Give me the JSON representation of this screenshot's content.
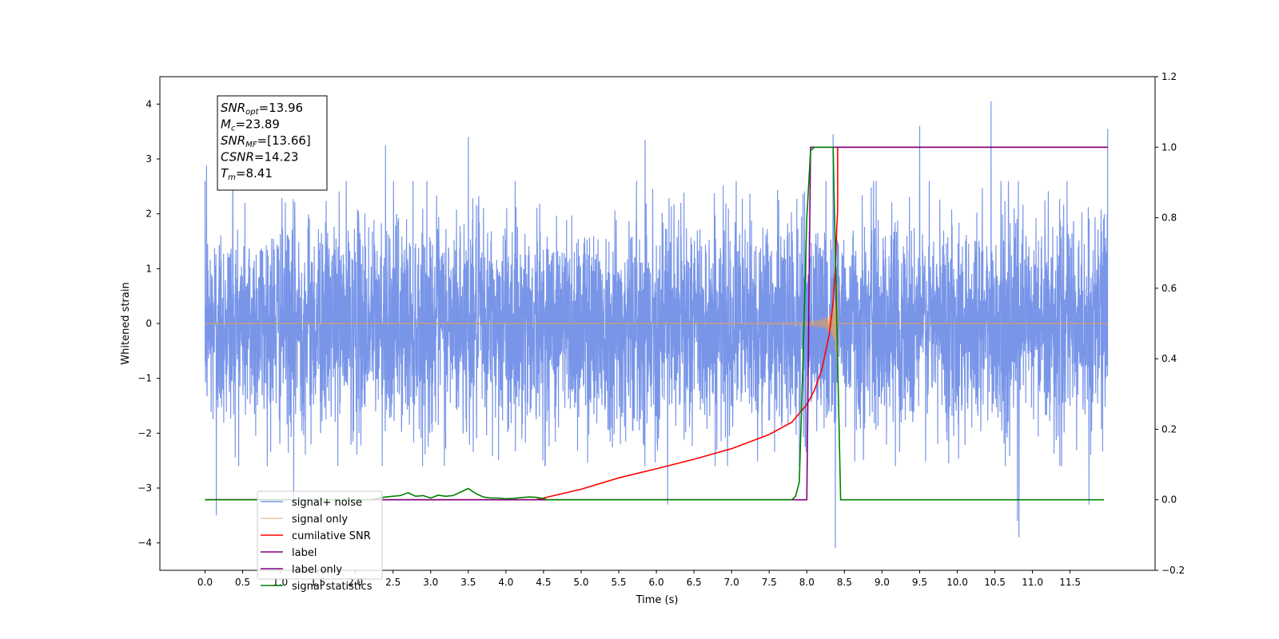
{
  "chart_data": {
    "type": "line",
    "xlabel": "Time (s)",
    "ylabel": "Whitened strain",
    "xlim": [
      -0.6,
      12.63
    ],
    "ylim": [
      -4.5,
      4.5
    ],
    "y2lim": [
      -0.2,
      1.2
    ],
    "x_ticks": [
      0.0,
      0.5,
      1.0,
      1.5,
      2.0,
      2.5,
      3.0,
      3.5,
      4.0,
      4.5,
      5.0,
      5.5,
      6.0,
      6.5,
      7.0,
      7.5,
      8.0,
      8.5,
      9.0,
      9.5,
      10.0,
      10.5,
      11.0,
      11.5
    ],
    "x_tick_labels": [
      "0.0",
      "0.5",
      "1.0",
      "1.5",
      "2.0",
      "2.5",
      "3.0",
      "3.5",
      "4.0",
      "4.5",
      "5.0",
      "5.5",
      "6.0",
      "6.5",
      "7.0",
      "7.5",
      "8.0",
      "8.5",
      "9.0",
      "9.5",
      "10.0",
      "10.5",
      "11.0",
      "11.5"
    ],
    "y_ticks": [
      -4,
      -3,
      -2,
      -1,
      0,
      1,
      2,
      3,
      4
    ],
    "y_tick_labels": [
      "−4",
      "−3",
      "−2",
      "−1",
      "0",
      "1",
      "2",
      "3",
      "4"
    ],
    "y2_ticks": [
      -0.2,
      0.0,
      0.2,
      0.4,
      0.6,
      0.8,
      1.0,
      1.2
    ],
    "y2_tick_labels": [
      "−0.2",
      "0.0",
      "0.2",
      "0.4",
      "0.6",
      "0.8",
      "1.0",
      "1.2"
    ],
    "legend_position": "lower-left",
    "annotation": {
      "lines": [
        {
          "sym": "SNR",
          "sub": "opt",
          "val": "=13.96"
        },
        {
          "sym": "M",
          "sub": "c",
          "val": "=23.89"
        },
        {
          "sym": "SNR",
          "sub": "MF",
          "val": "=[13.66]"
        },
        {
          "sym": "CSNR",
          "sub": "",
          "val": "=14.23"
        },
        {
          "sym": "T",
          "sub": "m",
          "val": "=8.41"
        }
      ]
    },
    "series": [
      {
        "name": "signal+ noise",
        "axis": "left",
        "color": "#7895e8",
        "kind": "noise",
        "x_range": [
          0.0,
          12.0
        ],
        "std": 0.95,
        "peaks": [
          [
            0.02,
            2.88
          ],
          [
            0.15,
            -3.5
          ],
          [
            0.37,
            3.1
          ],
          [
            1.18,
            -3.35
          ],
          [
            2.4,
            3.25
          ],
          [
            3.5,
            3.4
          ],
          [
            5.85,
            3.35
          ],
          [
            6.15,
            -3.3
          ],
          [
            8.35,
            3.45
          ],
          [
            8.38,
            -4.1
          ],
          [
            9.5,
            3.6
          ],
          [
            10.45,
            4.05
          ],
          [
            10.8,
            -3.6
          ],
          [
            10.82,
            -3.9
          ],
          [
            11.75,
            -3.3
          ],
          [
            12.0,
            3.55
          ]
        ]
      },
      {
        "name": "signal only",
        "axis": "left",
        "color": "#e0a060",
        "kind": "chirp",
        "x_range": [
          0.0,
          12.0
        ],
        "t_merger": 8.41
      },
      {
        "name": "cumilative SNR",
        "axis": "right",
        "color": "#ff0000",
        "kind": "line",
        "x": [
          0.0,
          4.4,
          4.5,
          5.0,
          5.5,
          6.0,
          6.5,
          7.0,
          7.5,
          7.8,
          8.0,
          8.1,
          8.2,
          8.3,
          8.35,
          8.38,
          8.4,
          8.41,
          8.41,
          12.0
        ],
        "y": [
          0.0,
          0.0,
          0.005,
          0.03,
          0.062,
          0.088,
          0.115,
          0.145,
          0.185,
          0.22,
          0.27,
          0.31,
          0.37,
          0.47,
          0.56,
          0.66,
          0.78,
          0.82,
          1.0,
          1.0
        ]
      },
      {
        "name": "label",
        "axis": "right",
        "color": "#800080",
        "kind": "line",
        "x": [
          0.0,
          8.0,
          8.05,
          12.0
        ],
        "y": [
          0.0,
          0.0,
          1.0,
          1.0
        ]
      },
      {
        "name": "label only",
        "axis": "right",
        "color": "#800080",
        "kind": "hidden",
        "x": [],
        "y": []
      },
      {
        "name": "signal statistics",
        "axis": "right",
        "color": "#008000",
        "kind": "line",
        "x": [
          0.0,
          2.2,
          2.4,
          2.6,
          2.7,
          2.8,
          2.9,
          3.0,
          3.1,
          3.2,
          3.3,
          3.4,
          3.5,
          3.6,
          3.7,
          3.8,
          3.9,
          4.0,
          4.1,
          4.2,
          4.3,
          4.4,
          4.5,
          4.55,
          7.8,
          7.85,
          7.9,
          7.95,
          8.0,
          8.05,
          8.1,
          8.35,
          8.4,
          8.45,
          11.95
        ],
        "y": [
          0.0,
          0.0,
          0.008,
          0.012,
          0.02,
          0.01,
          0.012,
          0.005,
          0.013,
          0.01,
          0.012,
          0.022,
          0.032,
          0.018,
          0.008,
          0.005,
          0.005,
          0.003,
          0.004,
          0.006,
          0.008,
          0.007,
          0.003,
          0.0,
          0.0,
          0.01,
          0.05,
          0.4,
          0.8,
          0.99,
          1.0,
          1.0,
          0.5,
          0.0,
          0.0
        ]
      }
    ]
  }
}
